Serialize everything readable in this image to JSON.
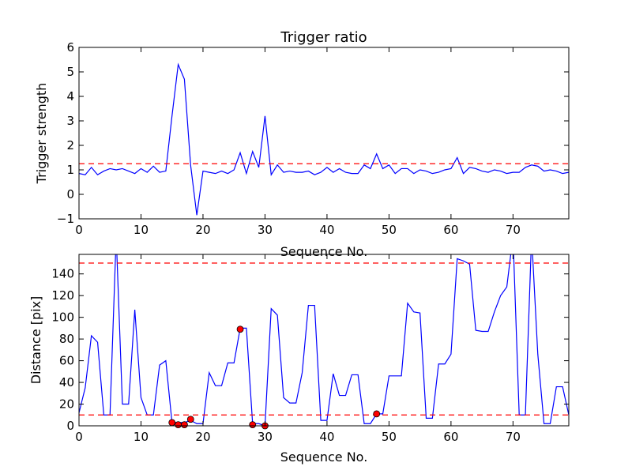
{
  "chart_data": [
    {
      "type": "line",
      "title": "Trigger ratio",
      "xlabel": "Sequence No.",
      "ylabel": "Trigger strength",
      "xlim": [
        0,
        79
      ],
      "ylim": [
        -1,
        6
      ],
      "x_ticks": [
        "0",
        "10",
        "20",
        "30",
        "40",
        "50",
        "60",
        "70"
      ],
      "y_ticks": [
        "−1",
        "0",
        "1",
        "2",
        "3",
        "4",
        "5",
        "6"
      ],
      "grid": false,
      "colors": {
        "series": "#0000ff",
        "threshold": "#ff0000"
      },
      "series": [
        {
          "values": [
            0.85,
            0.8,
            1.1,
            0.8,
            0.95,
            1.05,
            1.0,
            1.05,
            0.95,
            0.85,
            1.05,
            0.9,
            1.15,
            0.9,
            0.95,
            3.2,
            5.3,
            4.7,
            1.2,
            -0.85,
            0.95,
            0.9,
            0.85,
            0.95,
            0.85,
            1.0,
            1.7,
            0.85,
            1.75,
            1.1,
            3.2,
            0.8,
            1.2,
            0.9,
            0.95,
            0.9,
            0.9,
            0.95,
            0.8,
            0.9,
            1.1,
            0.9,
            1.05,
            0.9,
            0.85,
            0.85,
            1.2,
            1.05,
            1.65,
            1.05,
            1.2,
            0.85,
            1.05,
            1.05,
            0.85,
            1.0,
            0.95,
            0.85,
            0.9,
            1.0,
            1.05,
            1.5,
            0.85,
            1.1,
            1.05,
            0.95,
            0.9,
            1.0,
            0.95,
            0.85,
            0.9,
            0.9,
            1.1,
            1.2,
            1.15,
            0.95,
            1.0,
            0.95,
            0.85,
            0.9
          ]
        }
      ],
      "threshold": 1.25
    },
    {
      "type": "line",
      "title": "",
      "xlabel": "Sequence No.",
      "ylabel": "Distance [pix]",
      "xlim": [
        0,
        79
      ],
      "ylim": [
        0,
        158
      ],
      "x_ticks": [
        "0",
        "10",
        "20",
        "30",
        "40",
        "50",
        "60",
        "70"
      ],
      "y_ticks": [
        "0",
        "20",
        "40",
        "60",
        "80",
        "100",
        "120",
        "140"
      ],
      "grid": false,
      "colors": {
        "series": "#0000ff",
        "threshold": "#ff0000",
        "markers": "#ff0000"
      },
      "series": [
        {
          "values": [
            12,
            35,
            83,
            77,
            10,
            10,
            175,
            20,
            20,
            107,
            26,
            10,
            10,
            56,
            60,
            3,
            3,
            3,
            5,
            2,
            2,
            49,
            37,
            37,
            58,
            58,
            90,
            90,
            2,
            2,
            0,
            108,
            102,
            26,
            21,
            21,
            49,
            111,
            111,
            5,
            5,
            48,
            28,
            28,
            47,
            47,
            2,
            2,
            11,
            11,
            46,
            46,
            46,
            113,
            105,
            104,
            7,
            7,
            57,
            57,
            66,
            154,
            152,
            149,
            88,
            87,
            87,
            105,
            120,
            128,
            175,
            10,
            10,
            175,
            66,
            2,
            2,
            36,
            36,
            10
          ]
        }
      ],
      "thresholds": [
        150,
        10
      ],
      "highlight_points": [
        {
          "x": 15,
          "y": 3
        },
        {
          "x": 16,
          "y": 1
        },
        {
          "x": 17,
          "y": 1
        },
        {
          "x": 18,
          "y": 6
        },
        {
          "x": 26,
          "y": 89
        },
        {
          "x": 28,
          "y": 1
        },
        {
          "x": 30,
          "y": 0
        },
        {
          "x": 48,
          "y": 11
        }
      ]
    }
  ]
}
